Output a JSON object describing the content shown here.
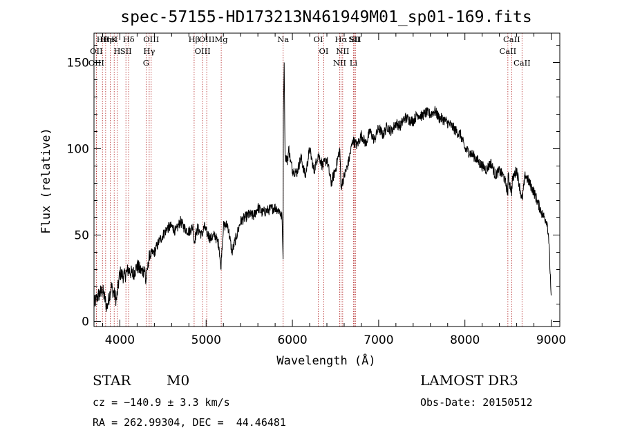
{
  "chart_data": {
    "type": "line",
    "title": "spec-57155-HD173213N461949M01_sp01-169.fits",
    "xlabel": "Wavelength (Å)",
    "ylabel": "Flux (relative)",
    "xlim": [
      3700,
      9100
    ],
    "ylim": [
      -3,
      167
    ],
    "xticks": [
      4000,
      5000,
      6000,
      7000,
      8000,
      9000
    ],
    "yticks": [
      0,
      50,
      100,
      150
    ],
    "grid": false,
    "series": [
      {
        "name": "spectrum",
        "color": "#000000",
        "x": [
          3700,
          3750,
          3800,
          3850,
          3900,
          3950,
          3960,
          4000,
          4050,
          4100,
          4150,
          4200,
          4250,
          4290,
          4300,
          4340,
          4400,
          4450,
          4500,
          4550,
          4600,
          4650,
          4700,
          4750,
          4800,
          4850,
          4860,
          4900,
          4950,
          4980,
          5000,
          5050,
          5100,
          5150,
          5170,
          5180,
          5200,
          5250,
          5300,
          5400,
          5450,
          5500,
          5550,
          5600,
          5650,
          5700,
          5750,
          5800,
          5850,
          5880,
          5892,
          5895,
          5905,
          5915,
          5940,
          5960,
          5980,
          6000,
          6050,
          6100,
          6150,
          6200,
          6250,
          6300,
          6350,
          6400,
          6450,
          6500,
          6550,
          6563,
          6600,
          6650,
          6700,
          6750,
          6800,
          6850,
          6900,
          6950,
          7000,
          7050,
          7100,
          7150,
          7200,
          7250,
          7300,
          7350,
          7400,
          7450,
          7500,
          7550,
          7600,
          7650,
          7700,
          7750,
          7800,
          7850,
          7900,
          7950,
          8000,
          8050,
          8100,
          8150,
          8200,
          8250,
          8300,
          8350,
          8400,
          8450,
          8498,
          8500,
          8542,
          8550,
          8600,
          8662,
          8700,
          8750,
          8800,
          8850,
          8900,
          8950,
          8970,
          9000
        ],
        "y": [
          10,
          15,
          18,
          8,
          20,
          14,
          12,
          28,
          26,
          30,
          27,
          32,
          29,
          30,
          22,
          38,
          40,
          46,
          50,
          54,
          55,
          52,
          58,
          54,
          52,
          55,
          46,
          54,
          50,
          55,
          52,
          48,
          50,
          44,
          30,
          40,
          55,
          56,
          40,
          58,
          60,
          62,
          61,
          66,
          63,
          64,
          65,
          66,
          64,
          60,
          36,
          120,
          150,
          96,
          93,
          100,
          92,
          88,
          86,
          95,
          84,
          100,
          87,
          97,
          90,
          94,
          80,
          88,
          100,
          78,
          84,
          92,
          105,
          102,
          108,
          103,
          110,
          105,
          112,
          108,
          113,
          110,
          115,
          113,
          118,
          117,
          116,
          120,
          119,
          121,
          120,
          122,
          118,
          117,
          115,
          113,
          110,
          108,
          100,
          98,
          96,
          93,
          90,
          88,
          92,
          85,
          87,
          84,
          75,
          84,
          75,
          82,
          88,
          70,
          85,
          80,
          75,
          68,
          62,
          58,
          50,
          15
        ]
      }
    ],
    "spectral_lines": [
      {
        "label": "Hθ",
        "wavelength": 3798
      },
      {
        "label": "OII",
        "wavelength": 3727
      },
      {
        "label": "OIII",
        "wavelength": 3727
      },
      {
        "label": "K",
        "wavelength": 3934
      },
      {
        "label": "HeI",
        "wavelength": 3889
      },
      {
        "label": "Hη",
        "wavelength": 3835
      },
      {
        "label": "SII",
        "wavelength": 4070
      },
      {
        "label": "H",
        "wavelength": 3968
      },
      {
        "label": "Hδ",
        "wavelength": 4102
      },
      {
        "label": "OIII",
        "wavelength": 4363
      },
      {
        "label": "Hγ",
        "wavelength": 4340
      },
      {
        "label": "G",
        "wavelength": 4304
      },
      {
        "label": "OIII",
        "wavelength": 5007
      },
      {
        "label": "OIII",
        "wavelength": 4959
      },
      {
        "label": "Hβ",
        "wavelength": 4861
      },
      {
        "label": "Mg",
        "wavelength": 5175
      },
      {
        "label": "Na",
        "wavelength": 5893
      },
      {
        "label": "OI",
        "wavelength": 6300
      },
      {
        "label": "OI",
        "wavelength": 6364
      },
      {
        "label": "Hα",
        "wavelength": 6563
      },
      {
        "label": "NII",
        "wavelength": 6548
      },
      {
        "label": "NII",
        "wavelength": 6583
      },
      {
        "label": "SII",
        "wavelength": 6717
      },
      {
        "label": "Li",
        "wavelength": 6708
      },
      {
        "label": "SII",
        "wavelength": 6731
      },
      {
        "label": "CaII",
        "wavelength": 8542
      },
      {
        "label": "CaII",
        "wavelength": 8498
      },
      {
        "label": "CaII",
        "wavelength": 8662
      }
    ]
  },
  "info": {
    "object_class": "STAR",
    "subclass": "M0",
    "cz_line": "cz = −140.9 ± 3.3 km/s",
    "radec_line": "RA = 262.99304, DEC =  44.46481",
    "survey": "LAMOST DR3",
    "obs_date_line": "Obs-Date: 20150512"
  },
  "colors": {
    "spectrum": "#000000",
    "line_marker": "#b22222",
    "axes": "#000000"
  }
}
